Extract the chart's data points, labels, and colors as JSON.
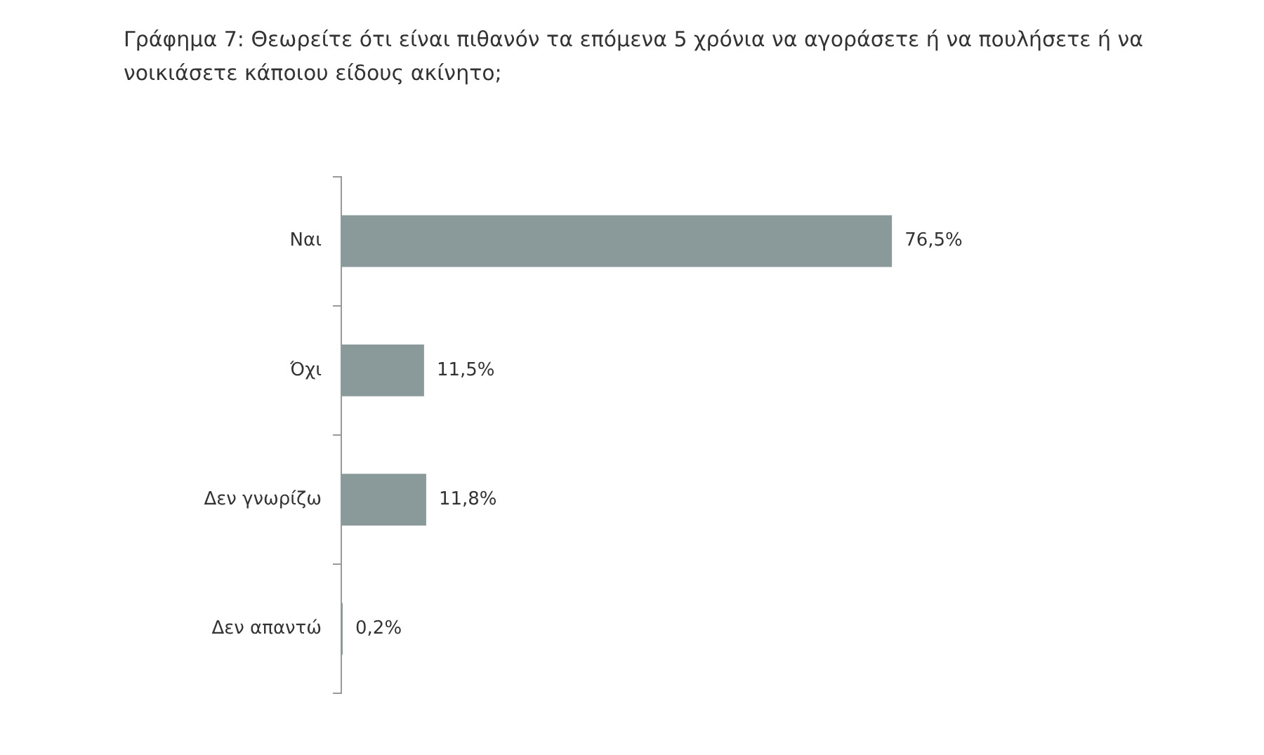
{
  "chart_data": {
    "type": "bar",
    "orientation": "horizontal",
    "title": "Γράφημα 7: Θεωρείτε ότι είναι πιθανόν τα επόμενα 5 χρόνια να αγοράσετε ή να πουλήσετε ή να νοικιάσετε κάποιου είδους ακίνητο;",
    "categories": [
      "Ναι",
      "Όχι",
      "Δεν γνωρίζω",
      "Δεν απαντώ"
    ],
    "values": [
      76.5,
      11.5,
      11.8,
      0.2
    ],
    "value_labels": [
      "76,5%",
      "11,5%",
      "11,8%",
      "0,2%"
    ],
    "color": "#8a9a9b",
    "legend": false
  }
}
